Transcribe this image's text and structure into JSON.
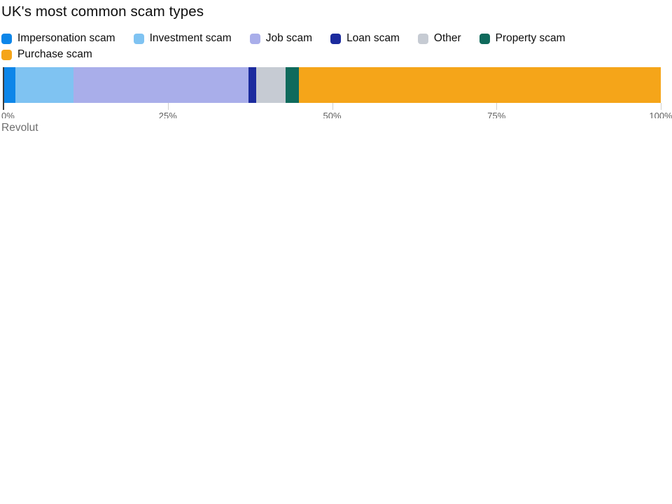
{
  "title": "UK's most common scam types",
  "source": "Revolut",
  "colors": {
    "axis_line": "#3d3d3d",
    "tick_line": "#cfcfcf",
    "tick_text": "#5e5e5e",
    "title_text": "#0d0d0d",
    "source_text": "#6e6e6e",
    "background": "#ffffff"
  },
  "chart_data": {
    "type": "bar",
    "subtype": "stacked-horizontal-single-bar",
    "title": "UK's most common scam types",
    "unit": "%",
    "grid": false,
    "legend_position": "top",
    "series": [
      {
        "name": "Impersonation scam",
        "value": 1.8,
        "color": "#0d86e9"
      },
      {
        "name": "Investment scam",
        "value": 8.9,
        "color": "#7fc3f2"
      },
      {
        "name": "Job scam",
        "value": 26.6,
        "color": "#a9aeea"
      },
      {
        "name": "Loan scam",
        "value": 1.1,
        "color": "#1c2b9e"
      },
      {
        "name": "Other",
        "value": 4.5,
        "color": "#c6cbd3"
      },
      {
        "name": "Property scam",
        "value": 2.0,
        "color": "#0f6a5c"
      },
      {
        "name": "Purchase scam",
        "value": 55.1,
        "color": "#f5a519"
      }
    ],
    "x_axis": {
      "range": [
        0,
        100
      ],
      "tick_values": [
        0,
        25,
        50,
        75,
        100
      ],
      "tick_labels": [
        "0%",
        "25%",
        "50%",
        "75%",
        "100%"
      ],
      "tick_labels_clipped": true
    }
  }
}
